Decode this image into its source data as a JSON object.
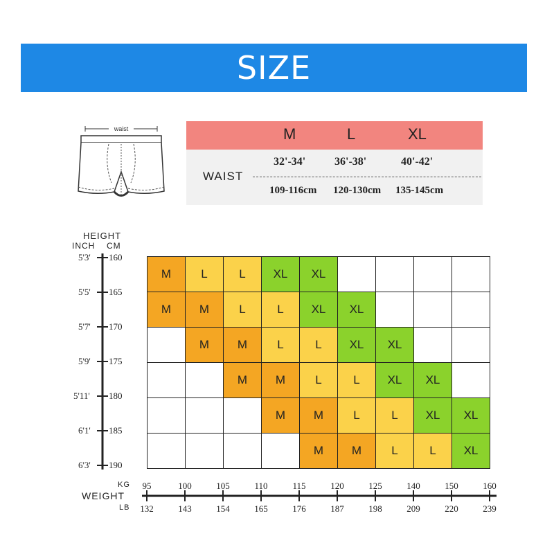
{
  "banner": {
    "title": "SIZE"
  },
  "illustration": {
    "label": "waist"
  },
  "waist_table": {
    "sizes": [
      "M",
      "L",
      "XL"
    ],
    "row_label": "WAIST",
    "inches": [
      "32'-34'",
      "36'-38'",
      "40'-42'"
    ],
    "cm": [
      "109-116cm",
      "120-130cm",
      "135-145cm"
    ]
  },
  "height_axis": {
    "title": "HEIGHT",
    "inch_label": "INCH",
    "cm_label": "CM",
    "inch_ticks": [
      "5'3'",
      "5'5'",
      "5'7'",
      "5'9'",
      "5'11'",
      "6'1'",
      "6'3'"
    ],
    "cm_ticks": [
      "160",
      "165",
      "170",
      "175",
      "180",
      "185",
      "190"
    ]
  },
  "weight_axis": {
    "title": "WEIGHT",
    "kg_label": "KG",
    "lb_label": "LB",
    "kg_ticks": [
      "95",
      "100",
      "105",
      "110",
      "115",
      "120",
      "125",
      "140",
      "150",
      "160"
    ],
    "lb_ticks": [
      "132",
      "143",
      "154",
      "165",
      "176",
      "187",
      "198",
      "209",
      "220",
      "239"
    ]
  },
  "size_grid": {
    "rows": [
      [
        "M",
        "L",
        "L",
        "XL",
        "XL",
        "",
        "",
        "",
        ""
      ],
      [
        "M",
        "M",
        "L",
        "L",
        "XL",
        "XL",
        "",
        "",
        ""
      ],
      [
        "",
        "M",
        "M",
        "L",
        "L",
        "XL",
        "XL",
        "",
        ""
      ],
      [
        "",
        "",
        "M",
        "M",
        "L",
        "L",
        "XL",
        "XL",
        ""
      ],
      [
        "",
        "",
        "",
        "M",
        "M",
        "L",
        "L",
        "XL",
        "XL"
      ],
      [
        "",
        "",
        "",
        "",
        "M",
        "M",
        "L",
        "L",
        "XL"
      ]
    ]
  },
  "colors": {
    "banner": "#1e88e5",
    "header": "#f2857f",
    "M": "#f4a623",
    "L": "#fbd24a",
    "XL": "#8bd22c"
  }
}
